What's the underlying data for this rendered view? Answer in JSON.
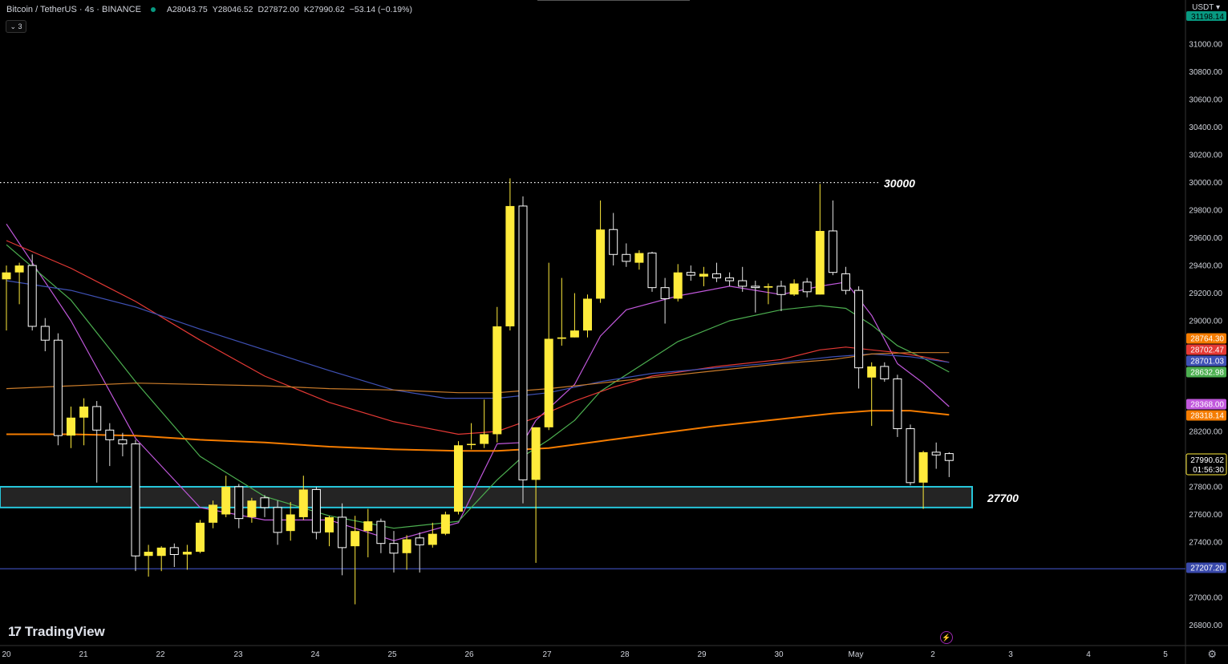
{
  "header": {
    "symbol": "Bitcoin / TetherUS · 4s · BINANCE",
    "open": "A28043.75",
    "high": "Y28046.52",
    "low": "D27872.00",
    "close": "K27990.62",
    "change": "−53.14 (−0.19%)",
    "indicator_toggle": "⌄ 3"
  },
  "currency": "USDT ▾",
  "branding": {
    "logo_mark": "17",
    "logo_text": "TradingView"
  },
  "colors": {
    "bull_candle": "#ffeb3b",
    "bear_candle": "#ffffff",
    "zone_border": "#26c6da",
    "ma_magenta": "#c158dc",
    "ma_green": "#4caf50",
    "ma_red": "#e53935",
    "ma_blue": "#3f51b5",
    "ma_orange_thin": "#c97b2a",
    "ma_orange_thick": "#f57c00",
    "support_line": "#3949ab"
  },
  "chart_data": {
    "type": "candlestick",
    "y_axis": {
      "range": [
        26700,
        31210
      ],
      "ticks": [
        31000,
        30800,
        30600,
        30400,
        30200,
        30000,
        29800,
        29600,
        29400,
        29200,
        29000,
        28200,
        28000,
        27800,
        27600,
        27400,
        27000,
        26800
      ],
      "tick_labels": [
        "31000.00",
        "30800.00",
        "30600.00",
        "30400.00",
        "30200.00",
        "30000.00",
        "29800.00",
        "29600.00",
        "29400.00",
        "29200.00",
        "29000.00",
        "28200.00",
        "28000.00",
        "27800.00",
        "27600.00",
        "27400.00",
        "27000.00",
        "26800.00"
      ]
    },
    "x_axis": {
      "labels": [
        "20",
        "21",
        "22",
        "23",
        "24",
        "25",
        "26",
        "27",
        "28",
        "29",
        "30",
        "May",
        "2",
        "3",
        "4",
        "5"
      ]
    },
    "candles": [
      {
        "o": 29300,
        "h": 29400,
        "l": 28930,
        "c": 29350
      },
      {
        "o": 29350,
        "h": 29420,
        "l": 29120,
        "c": 29400
      },
      {
        "o": 29400,
        "h": 29480,
        "l": 28930,
        "c": 28960
      },
      {
        "o": 28960,
        "h": 29020,
        "l": 28780,
        "c": 28860
      },
      {
        "o": 28860,
        "h": 28910,
        "l": 28100,
        "c": 28170
      },
      {
        "o": 28170,
        "h": 28380,
        "l": 28080,
        "c": 28300
      },
      {
        "o": 28300,
        "h": 28440,
        "l": 28100,
        "c": 28380
      },
      {
        "o": 28380,
        "h": 28420,
        "l": 27830,
        "c": 28210
      },
      {
        "o": 28210,
        "h": 28260,
        "l": 27950,
        "c": 28140
      },
      {
        "o": 28140,
        "h": 28190,
        "l": 28020,
        "c": 28110
      },
      {
        "o": 28110,
        "h": 28140,
        "l": 27190,
        "c": 27300
      },
      {
        "o": 27300,
        "h": 27380,
        "l": 27150,
        "c": 27330
      },
      {
        "o": 27300,
        "h": 27370,
        "l": 27190,
        "c": 27360
      },
      {
        "o": 27360,
        "h": 27390,
        "l": 27220,
        "c": 27310
      },
      {
        "o": 27310,
        "h": 27380,
        "l": 27200,
        "c": 27330
      },
      {
        "o": 27330,
        "h": 27560,
        "l": 27320,
        "c": 27540
      },
      {
        "o": 27540,
        "h": 27700,
        "l": 27500,
        "c": 27670
      },
      {
        "o": 27600,
        "h": 27880,
        "l": 27580,
        "c": 27800
      },
      {
        "o": 27800,
        "h": 27820,
        "l": 27500,
        "c": 27570
      },
      {
        "o": 27580,
        "h": 27720,
        "l": 27540,
        "c": 27700
      },
      {
        "o": 27720,
        "h": 27740,
        "l": 27580,
        "c": 27650
      },
      {
        "o": 27650,
        "h": 27700,
        "l": 27380,
        "c": 27470
      },
      {
        "o": 27480,
        "h": 27690,
        "l": 27410,
        "c": 27600
      },
      {
        "o": 27580,
        "h": 27880,
        "l": 27560,
        "c": 27780
      },
      {
        "o": 27780,
        "h": 27800,
        "l": 27420,
        "c": 27470
      },
      {
        "o": 27470,
        "h": 27590,
        "l": 27370,
        "c": 27580
      },
      {
        "o": 27580,
        "h": 27680,
        "l": 27160,
        "c": 27360
      },
      {
        "o": 27370,
        "h": 27590,
        "l": 26950,
        "c": 27480
      },
      {
        "o": 27480,
        "h": 27640,
        "l": 27290,
        "c": 27550
      },
      {
        "o": 27550,
        "h": 27570,
        "l": 27320,
        "c": 27390
      },
      {
        "o": 27390,
        "h": 27480,
        "l": 27180,
        "c": 27320
      },
      {
        "o": 27320,
        "h": 27450,
        "l": 27200,
        "c": 27420
      },
      {
        "o": 27430,
        "h": 27470,
        "l": 27180,
        "c": 27380
      },
      {
        "o": 27380,
        "h": 27540,
        "l": 27360,
        "c": 27460
      },
      {
        "o": 27460,
        "h": 27620,
        "l": 27450,
        "c": 27600
      },
      {
        "o": 27620,
        "h": 28130,
        "l": 27600,
        "c": 28100
      },
      {
        "o": 28110,
        "h": 28260,
        "l": 28070,
        "c": 28110
      },
      {
        "o": 28110,
        "h": 28430,
        "l": 28080,
        "c": 28180
      },
      {
        "o": 28180,
        "h": 29100,
        "l": 28120,
        "c": 28960
      },
      {
        "o": 28960,
        "h": 30030,
        "l": 28930,
        "c": 29830
      },
      {
        "o": 29830,
        "h": 29900,
        "l": 27680,
        "c": 27850
      },
      {
        "o": 27850,
        "h": 28230,
        "l": 27250,
        "c": 28230
      },
      {
        "o": 28230,
        "h": 29420,
        "l": 28210,
        "c": 28870
      },
      {
        "o": 28870,
        "h": 29310,
        "l": 28820,
        "c": 28880
      },
      {
        "o": 28880,
        "h": 29200,
        "l": 28880,
        "c": 28930
      },
      {
        "o": 28930,
        "h": 29190,
        "l": 28880,
        "c": 29160
      },
      {
        "o": 29160,
        "h": 29870,
        "l": 29130,
        "c": 29660
      },
      {
        "o": 29660,
        "h": 29780,
        "l": 29400,
        "c": 29480
      },
      {
        "o": 29480,
        "h": 29560,
        "l": 29390,
        "c": 29430
      },
      {
        "o": 29420,
        "h": 29510,
        "l": 29370,
        "c": 29490
      },
      {
        "o": 29490,
        "h": 29500,
        "l": 29210,
        "c": 29240
      },
      {
        "o": 29240,
        "h": 29310,
        "l": 28980,
        "c": 29160
      },
      {
        "o": 29160,
        "h": 29410,
        "l": 29140,
        "c": 29350
      },
      {
        "o": 29350,
        "h": 29400,
        "l": 29290,
        "c": 29330
      },
      {
        "o": 29320,
        "h": 29390,
        "l": 29250,
        "c": 29340
      },
      {
        "o": 29340,
        "h": 29420,
        "l": 29280,
        "c": 29310
      },
      {
        "o": 29310,
        "h": 29350,
        "l": 29250,
        "c": 29290
      },
      {
        "o": 29290,
        "h": 29390,
        "l": 29210,
        "c": 29250
      },
      {
        "o": 29250,
        "h": 29290,
        "l": 29060,
        "c": 29240
      },
      {
        "o": 29240,
        "h": 29270,
        "l": 29120,
        "c": 29250
      },
      {
        "o": 29250,
        "h": 29290,
        "l": 29070,
        "c": 29190
      },
      {
        "o": 29190,
        "h": 29300,
        "l": 29180,
        "c": 29270
      },
      {
        "o": 29280,
        "h": 29310,
        "l": 29170,
        "c": 29210
      },
      {
        "o": 29190,
        "h": 29990,
        "l": 29190,
        "c": 29650
      },
      {
        "o": 29650,
        "h": 29870,
        "l": 29330,
        "c": 29350
      },
      {
        "o": 29340,
        "h": 29390,
        "l": 29190,
        "c": 29220
      },
      {
        "o": 29220,
        "h": 29250,
        "l": 28510,
        "c": 28660
      },
      {
        "o": 28590,
        "h": 28700,
        "l": 28240,
        "c": 28670
      },
      {
        "o": 28670,
        "h": 28700,
        "l": 28560,
        "c": 28580
      },
      {
        "o": 28580,
        "h": 28610,
        "l": 28160,
        "c": 28220
      },
      {
        "o": 28220,
        "h": 28250,
        "l": 27810,
        "c": 27830
      },
      {
        "o": 27830,
        "h": 28060,
        "l": 27640,
        "c": 28050
      },
      {
        "o": 28050,
        "h": 28120,
        "l": 27930,
        "c": 28030
      },
      {
        "o": 28040,
        "h": 28050,
        "l": 27870,
        "c": 27990
      }
    ],
    "moving_averages": [
      {
        "color": "#c158dc",
        "width": 1.2,
        "points": [
          [
            0,
            29700
          ],
          [
            5,
            29000
          ],
          [
            10,
            28150
          ],
          [
            15,
            27650
          ],
          [
            20,
            27560
          ],
          [
            25,
            27560
          ],
          [
            30,
            27410
          ],
          [
            35,
            27540
          ],
          [
            38,
            28110
          ],
          [
            40,
            28120
          ],
          [
            41,
            28280
          ],
          [
            44,
            28540
          ],
          [
            46,
            28890
          ],
          [
            48,
            29080
          ],
          [
            52,
            29180
          ],
          [
            56,
            29250
          ],
          [
            60,
            29190
          ],
          [
            63,
            29250
          ],
          [
            65,
            29280
          ],
          [
            67,
            29040
          ],
          [
            69,
            28690
          ],
          [
            71,
            28550
          ],
          [
            73,
            28380
          ]
        ]
      },
      {
        "color": "#4caf50",
        "width": 1.2,
        "points": [
          [
            0,
            29550
          ],
          [
            5,
            29150
          ],
          [
            10,
            28560
          ],
          [
            15,
            28020
          ],
          [
            20,
            27730
          ],
          [
            25,
            27590
          ],
          [
            30,
            27500
          ],
          [
            35,
            27550
          ],
          [
            38,
            27850
          ],
          [
            40,
            28020
          ],
          [
            42,
            28140
          ],
          [
            44,
            28280
          ],
          [
            46,
            28490
          ],
          [
            49,
            28670
          ],
          [
            52,
            28850
          ],
          [
            56,
            29000
          ],
          [
            60,
            29080
          ],
          [
            63,
            29110
          ],
          [
            65,
            29090
          ],
          [
            67,
            28970
          ],
          [
            69,
            28820
          ],
          [
            71,
            28730
          ],
          [
            73,
            28630
          ]
        ]
      },
      {
        "color": "#e53935",
        "width": 1.2,
        "points": [
          [
            0,
            29580
          ],
          [
            5,
            29380
          ],
          [
            10,
            29140
          ],
          [
            15,
            28860
          ],
          [
            20,
            28600
          ],
          [
            25,
            28410
          ],
          [
            30,
            28270
          ],
          [
            35,
            28180
          ],
          [
            38,
            28200
          ],
          [
            41,
            28300
          ],
          [
            44,
            28420
          ],
          [
            47,
            28520
          ],
          [
            50,
            28600
          ],
          [
            55,
            28670
          ],
          [
            60,
            28720
          ],
          [
            63,
            28790
          ],
          [
            65,
            28810
          ],
          [
            67,
            28790
          ],
          [
            69,
            28770
          ],
          [
            71,
            28740
          ],
          [
            73,
            28700
          ]
        ]
      },
      {
        "color": "#3f51b5",
        "width": 1.2,
        "points": [
          [
            0,
            29290
          ],
          [
            5,
            29220
          ],
          [
            10,
            29100
          ],
          [
            15,
            28940
          ],
          [
            20,
            28790
          ],
          [
            25,
            28640
          ],
          [
            30,
            28500
          ],
          [
            34,
            28440
          ],
          [
            38,
            28440
          ],
          [
            42,
            28480
          ],
          [
            46,
            28560
          ],
          [
            50,
            28620
          ],
          [
            55,
            28660
          ],
          [
            60,
            28700
          ],
          [
            64,
            28740
          ],
          [
            67,
            28760
          ],
          [
            70,
            28740
          ],
          [
            73,
            28700
          ]
        ]
      },
      {
        "color": "#c97b2a",
        "width": 1.2,
        "points": [
          [
            0,
            28510
          ],
          [
            5,
            28530
          ],
          [
            10,
            28550
          ],
          [
            15,
            28540
          ],
          [
            20,
            28530
          ],
          [
            25,
            28510
          ],
          [
            30,
            28500
          ],
          [
            35,
            28480
          ],
          [
            38,
            28480
          ],
          [
            42,
            28510
          ],
          [
            46,
            28550
          ],
          [
            50,
            28590
          ],
          [
            55,
            28640
          ],
          [
            60,
            28690
          ],
          [
            64,
            28720
          ],
          [
            67,
            28760
          ],
          [
            70,
            28770
          ],
          [
            73,
            28770
          ]
        ]
      },
      {
        "color": "#f57c00",
        "width": 2,
        "points": [
          [
            0,
            28180
          ],
          [
            5,
            28180
          ],
          [
            10,
            28170
          ],
          [
            15,
            28140
          ],
          [
            20,
            28120
          ],
          [
            25,
            28090
          ],
          [
            30,
            28070
          ],
          [
            35,
            28060
          ],
          [
            38,
            28060
          ],
          [
            42,
            28080
          ],
          [
            46,
            28130
          ],
          [
            50,
            28180
          ],
          [
            55,
            28240
          ],
          [
            60,
            28290
          ],
          [
            64,
            28330
          ],
          [
            67,
            28350
          ],
          [
            70,
            28350
          ],
          [
            73,
            28320
          ]
        ]
      }
    ],
    "horizontal_levels": [
      {
        "value": 30000,
        "label": "30000",
        "style": "dotted",
        "color": "#ffffff"
      },
      {
        "value": 27207.2,
        "label": "",
        "style": "solid",
        "color": "#3949ab"
      }
    ],
    "zone": {
      "top": 27800,
      "bottom": 27650,
      "label": "27700",
      "border": "#26c6da"
    },
    "price_tags": [
      {
        "value": 28764.3,
        "label": "28764.30",
        "color": "#f57c00"
      },
      {
        "value": 28702.47,
        "label": "28702.47",
        "color": "#e53935"
      },
      {
        "value": 28701.03,
        "label": "28701.03",
        "color": "#3f51b5"
      },
      {
        "value": 28632.98,
        "label": "28632.98",
        "color": "#4caf50"
      },
      {
        "value": 28368.0,
        "label": "28368.00",
        "color": "#c158dc"
      },
      {
        "value": 28318.14,
        "label": "28318.14",
        "color": "#f57c00"
      },
      {
        "value": 27207.2,
        "label": "27207.20",
        "color": "#3949ab"
      }
    ],
    "current_price": {
      "value": 27990.62,
      "label": "27990.62",
      "countdown": "01:56:30",
      "color": "#ffeb3b"
    },
    "top_partial_tag": {
      "label": "31198.14",
      "color": "#089981"
    }
  }
}
